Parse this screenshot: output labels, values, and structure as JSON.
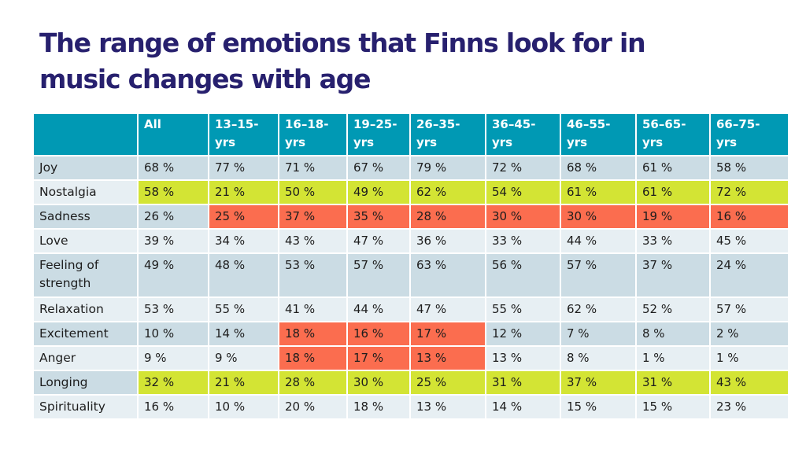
{
  "title": "The range of emotions that Finns look for in music changes with age",
  "title_lines": [
    "The range of emotions that Finns look for in",
    "music changes with age"
  ],
  "colors": {
    "title": "#27206e",
    "header_bg": "#0099b4",
    "row_dark": "#cbdce4",
    "row_light": "#e7eff3",
    "highlight_green": "#d3e434",
    "highlight_red": "#fb6d4f"
  },
  "table": {
    "columns": [
      {
        "line1": "",
        "line2": ""
      },
      {
        "line1": "All",
        "line2": ""
      },
      {
        "line1": "13–15-",
        "line2": "yrs"
      },
      {
        "line1": "16–18-",
        "line2": "yrs"
      },
      {
        "line1": "19–25-",
        "line2": "yrs"
      },
      {
        "line1": "26–35-",
        "line2": "yrs"
      },
      {
        "line1": "36–45-",
        "line2": "yrs"
      },
      {
        "line1": "46–55-",
        "line2": "yrs"
      },
      {
        "line1": "56–65-",
        "line2": "yrs"
      },
      {
        "line1": "66–75-",
        "line2": "yrs"
      }
    ],
    "rows": [
      {
        "label": "Joy",
        "label2": "",
        "shade": "dark",
        "cells": [
          "68 %",
          "77 %",
          "71 %",
          "67 %",
          "79 %",
          "72 %",
          "68 %",
          "61 %",
          "58 %"
        ],
        "highlight": [
          "",
          "",
          "",
          "",
          "",
          "",
          "",
          "",
          ""
        ]
      },
      {
        "label": "Nostalgia",
        "label2": "",
        "shade": "light",
        "cells": [
          "58 %",
          "21 %",
          "50 %",
          "49 %",
          "62 %",
          "54 %",
          "61 %",
          "61 %",
          "72 %"
        ],
        "highlight": [
          "green",
          "green",
          "green",
          "green",
          "green",
          "green",
          "green",
          "green",
          "green"
        ]
      },
      {
        "label": "Sadness",
        "label2": "",
        "shade": "dark",
        "cells": [
          "26 %",
          "25 %",
          "37 %",
          "35 %",
          "28 %",
          "30 %",
          "30 %",
          "19 %",
          "16 %"
        ],
        "highlight": [
          "",
          "red",
          "red",
          "red",
          "red",
          "red",
          "red",
          "red",
          "red"
        ]
      },
      {
        "label": "Love",
        "label2": "",
        "shade": "light",
        "cells": [
          "39 %",
          "34 %",
          "43 %",
          "47 %",
          "36 %",
          "33 %",
          "44 %",
          "33 %",
          "45 %"
        ],
        "highlight": [
          "",
          "",
          "",
          "",
          "",
          "",
          "",
          "",
          ""
        ]
      },
      {
        "label": "Feeling of",
        "label2": "strength",
        "shade": "dark",
        "cells": [
          "49 %",
          "48 %",
          "53 %",
          "57 %",
          "63 %",
          "56 %",
          "57 %",
          "37 %",
          "24 %"
        ],
        "highlight": [
          "",
          "",
          "",
          "",
          "",
          "",
          "",
          "",
          ""
        ]
      },
      {
        "label": "Relaxation",
        "label2": "",
        "shade": "light",
        "cells": [
          "53 %",
          "55 %",
          "41 %",
          "44 %",
          "47 %",
          "55 %",
          "62 %",
          "52 %",
          "57 %"
        ],
        "highlight": [
          "",
          "",
          "",
          "",
          "",
          "",
          "",
          "",
          ""
        ]
      },
      {
        "label": "Excitement",
        "label2": "",
        "shade": "dark",
        "cells": [
          "10 %",
          "14 %",
          "18 %",
          "16 %",
          "17 %",
          "12 %",
          "7 %",
          "8 %",
          "2 %"
        ],
        "highlight": [
          "",
          "",
          "red",
          "red",
          "red",
          "",
          "",
          "",
          ""
        ]
      },
      {
        "label": "Anger",
        "label2": "",
        "shade": "light",
        "cells": [
          "9 %",
          "9 %",
          "18 %",
          "17 %",
          "13 %",
          "13 %",
          "8 %",
          "1 %",
          "1 %"
        ],
        "highlight": [
          "",
          "",
          "red",
          "red",
          "red",
          "",
          "",
          "",
          ""
        ]
      },
      {
        "label": "Longing",
        "label2": "",
        "shade": "dark",
        "cells": [
          "32 %",
          "21 %",
          "28 %",
          "30 %",
          "25 %",
          "31 %",
          "37 %",
          "31 %",
          "43 %"
        ],
        "highlight": [
          "green",
          "green",
          "green",
          "green",
          "green",
          "green",
          "green",
          "green",
          "green"
        ]
      },
      {
        "label": "Spirituality",
        "label2": "",
        "shade": "light",
        "cells": [
          "16 %",
          "10 %",
          "20 %",
          "18 %",
          "13 %",
          "14 %",
          "15 %",
          "15 %",
          "23 %"
        ],
        "highlight": [
          "",
          "",
          "",
          "",
          "",
          "",
          "",
          "",
          ""
        ]
      }
    ]
  }
}
